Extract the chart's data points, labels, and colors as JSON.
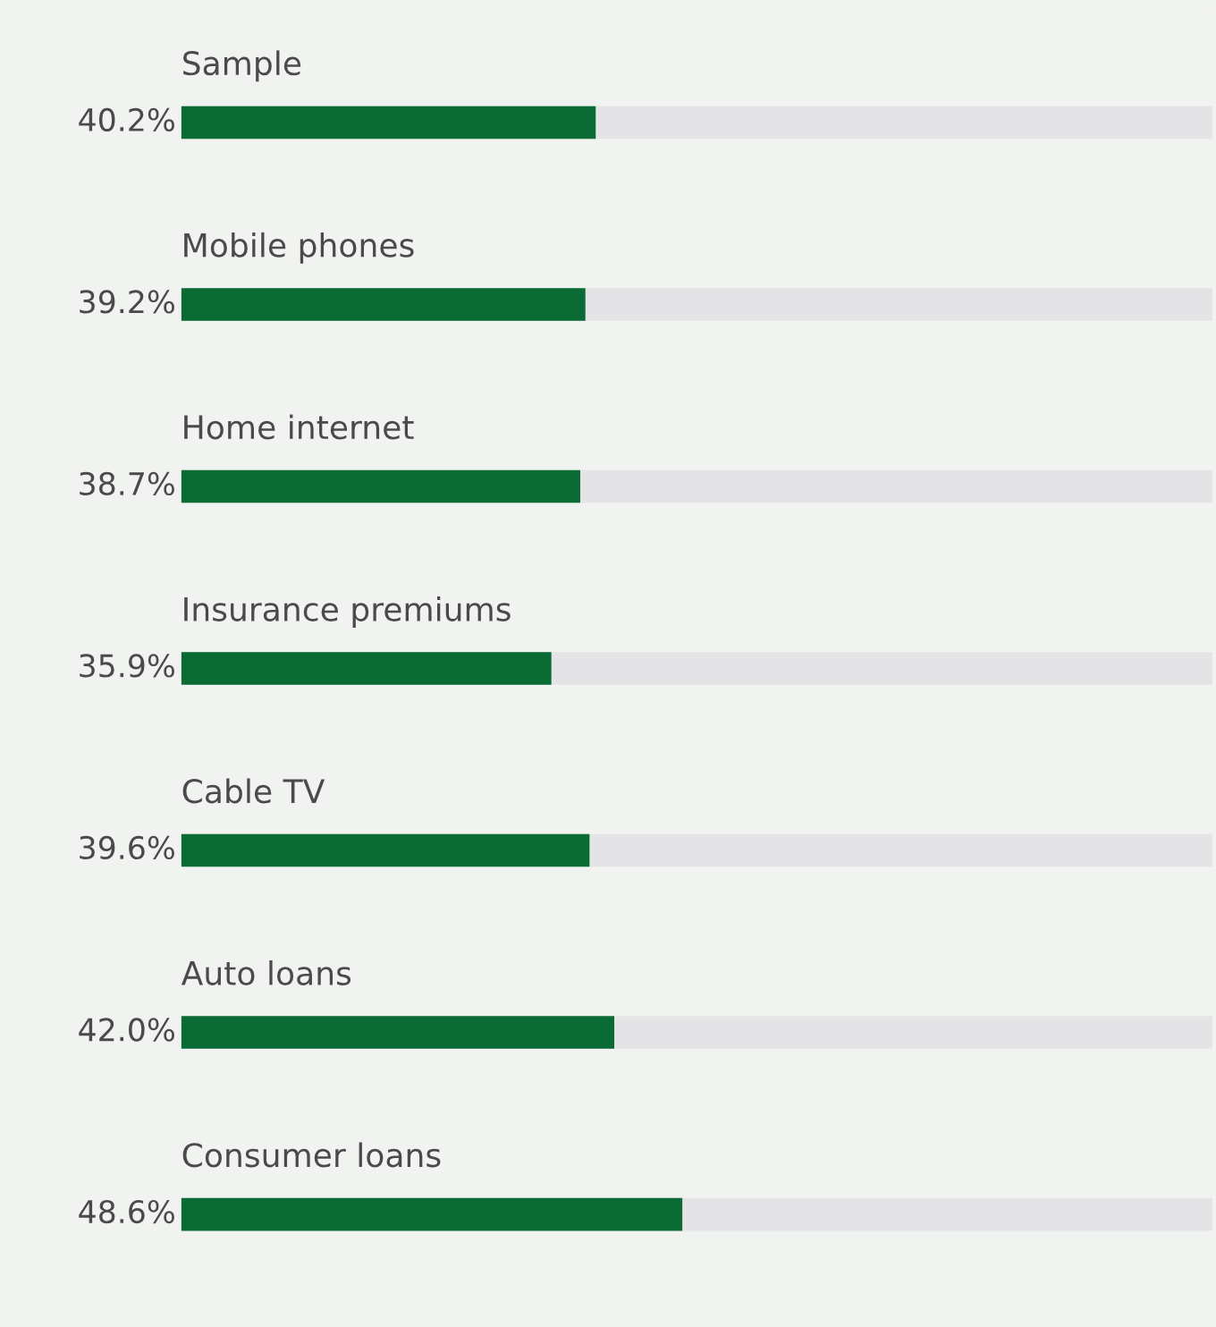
{
  "chart_data": {
    "type": "bar",
    "orientation": "horizontal",
    "categories": [
      "Sample",
      "Mobile phones",
      "Home internet",
      "Insurance premiums",
      "Cable TV",
      "Auto loans",
      "Consumer loans"
    ],
    "values": [
      40.2,
      39.2,
      38.7,
      35.9,
      39.6,
      42.0,
      48.6
    ],
    "value_labels": [
      "40.2%",
      "39.2%",
      "38.7%",
      "35.9%",
      "39.6%",
      "42.0%",
      "48.6%"
    ],
    "color": "#0b6b35",
    "xlim": [
      0,
      100
    ]
  }
}
